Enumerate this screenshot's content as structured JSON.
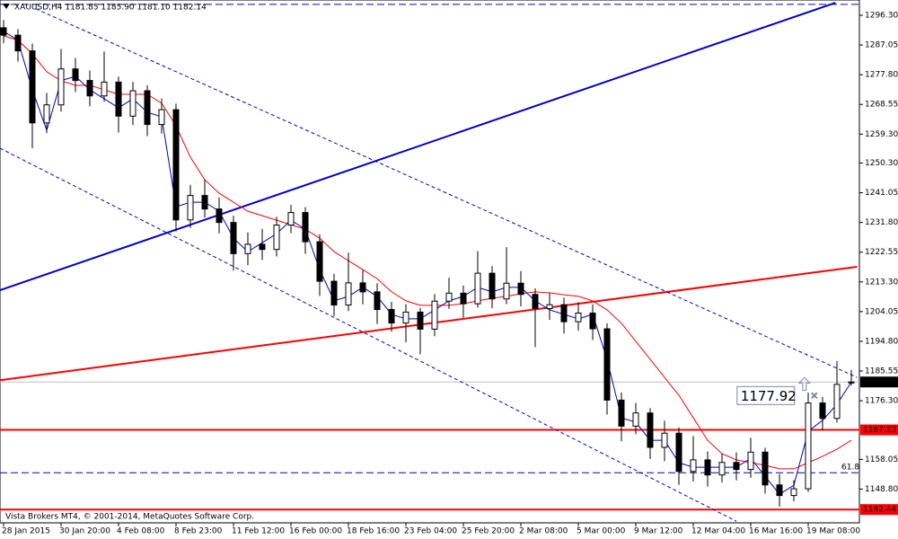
{
  "chart_data": {
    "type": "candlestick",
    "header": "XAUUSD,H4  1181.85 1185.90 1181.10 1182.14",
    "copyright": "Vista Brokers MT4, © 2001-2014, MetaQuotes Software Corp.",
    "categories": [
      "28 Jan 2015",
      null,
      null,
      null,
      "30 Jan 20:00",
      null,
      null,
      null,
      "4 Feb 08:00",
      null,
      null,
      null,
      "8 Feb 23:00",
      null,
      null,
      null,
      "11 Feb 12:00",
      null,
      null,
      null,
      "16 Feb 00:00",
      null,
      null,
      null,
      "18 Feb 16:00",
      null,
      null,
      null,
      "23 Feb 04:00",
      null,
      null,
      null,
      "25 Feb 20:00",
      null,
      null,
      null,
      "2 Mar 08:00",
      null,
      null,
      null,
      "5 Mar 00:00",
      null,
      null,
      null,
      "9 Mar 12:00",
      null,
      null,
      null,
      "12 Mar 04:00",
      null,
      null,
      null,
      "16 Mar 16:00",
      null,
      null,
      null,
      "19 Mar 08:00",
      null,
      null,
      null
    ],
    "open": [
      1292.4,
      1290.1,
      1285.2,
      1262.8,
      1268.4,
      1279.6,
      1276.0,
      1271.2,
      1275.5,
      1264.9,
      1272.8,
      1262.3,
      1266.9,
      1232.6,
      1240.2,
      1236.0,
      1231.8,
      1222.1,
      1225.0,
      1223.4,
      1231.0,
      1234.9,
      1225.8,
      1213.5,
      1206.1,
      1213.0,
      1210.2,
      1204.7,
      1200.5,
      1203.9,
      1198.6,
      1207.3,
      1209.8,
      1206.5,
      1216.0,
      1208.0,
      1212.9,
      1209.4,
      1205.0,
      1206.2,
      1200.9,
      1203.6,
      1198.7,
      1176.5,
      1168.4,
      1172.5,
      1161.8,
      1166.2,
      1154.3,
      1157.9,
      1153.2,
      1157.1,
      1154.9,
      1160.3,
      1150.1,
      1146.8,
      1148.9,
      1175.6,
      1170.8,
      1181.85
    ],
    "high": [
      1294.8,
      1292.0,
      1287.5,
      1272.1,
      1285.8,
      1283.0,
      1279.1,
      1285.0,
      1277.2,
      1275.6,
      1274.5,
      1270.4,
      1268.8,
      1243.5,
      1245.2,
      1239.6,
      1233.9,
      1228.7,
      1229.8,
      1233.6,
      1237.3,
      1236.6,
      1228.1,
      1215.8,
      1222.4,
      1217.0,
      1212.9,
      1207.1,
      1206.4,
      1205.2,
      1209.5,
      1214.6,
      1212.2,
      1222.9,
      1218.2,
      1224.1,
      1216.7,
      1211.3,
      1209.8,
      1208.4,
      1207.0,
      1206.3,
      1200.4,
      1178.9,
      1175.6,
      1174.0,
      1170.1,
      1168.0,
      1165.3,
      1160.5,
      1159.8,
      1160.2,
      1164.8,
      1161.7,
      1153.5,
      1151.6,
      1178.8,
      1177.5,
      1188.6,
      1185.9
    ],
    "low": [
      1287.6,
      1281.9,
      1254.9,
      1259.6,
      1266.3,
      1272.4,
      1268.0,
      1269.4,
      1259.8,
      1262.1,
      1258.7,
      1259.5,
      1229.0,
      1230.1,
      1233.3,
      1228.4,
      1216.8,
      1218.5,
      1220.1,
      1221.2,
      1228.5,
      1222.0,
      1208.9,
      1202.7,
      1204.2,
      1206.3,
      1200.2,
      1197.8,
      1194.5,
      1190.8,
      1196.4,
      1204.9,
      1202.1,
      1205.3,
      1205.1,
      1206.4,
      1205.7,
      1193.0,
      1201.5,
      1197.2,
      1198.1,
      1195.2,
      1172.0,
      1163.7,
      1165.9,
      1158.2,
      1157.5,
      1150.1,
      1151.2,
      1149.6,
      1150.9,
      1151.5,
      1152.3,
      1147.4,
      1143.3,
      1145.0,
      1147.9,
      1167.1,
      1169.5,
      1181.1
    ],
    "close": [
      1290.1,
      1285.2,
      1262.8,
      1268.4,
      1279.6,
      1276.0,
      1271.2,
      1275.5,
      1264.9,
      1272.8,
      1262.3,
      1266.9,
      1232.6,
      1240.2,
      1236.0,
      1231.8,
      1222.1,
      1225.0,
      1223.4,
      1231.0,
      1234.9,
      1225.8,
      1213.5,
      1206.1,
      1213.0,
      1210.2,
      1204.7,
      1200.5,
      1203.9,
      1198.6,
      1207.3,
      1209.8,
      1206.5,
      1216.0,
      1208.0,
      1212.9,
      1209.4,
      1205.0,
      1206.2,
      1200.9,
      1203.6,
      1198.7,
      1176.5,
      1168.4,
      1172.5,
      1161.8,
      1166.2,
      1154.3,
      1157.9,
      1153.2,
      1157.1,
      1154.9,
      1160.3,
      1150.1,
      1146.8,
      1148.9,
      1175.6,
      1170.8,
      1181.4,
      1182.14
    ],
    "series": [
      {
        "color": "#ff0000",
        "values": [
          1289.9,
          1288.5,
          1284.3,
          1278.7,
          1275.9,
          1274.5,
          1274.5,
          1273.1,
          1271.7,
          1271.7,
          1271.7,
          1268.9,
          1261.9,
          1252.1,
          1245.1,
          1240.9,
          1238.1,
          1235.3,
          1233.9,
          1232.5,
          1231.1,
          1229.7,
          1226.9,
          1222.7,
          1219.9,
          1217.1,
          1214.3,
          1210.2,
          1207.4,
          1206.0,
          1206.0,
          1206.0,
          1206.5,
          1207.4,
          1208.2,
          1208.8,
          1209.6,
          1210.2,
          1209.9,
          1209.3,
          1208.8,
          1207.4,
          1204.6,
          1200.4,
          1194.8,
          1189.2,
          1183.6,
          1178.0,
          1171.0,
          1164.0,
          1159.8,
          1157.9,
          1157.0,
          1156.2,
          1155.1,
          1155.1,
          1157.0,
          1159.0,
          1161.2,
          1164.0
        ]
      },
      {
        "color": "#0000cc",
        "values": [
          1291.3,
          1288.5,
          1273.1,
          1260.5,
          1275.9,
          1277.3,
          1273.1,
          1270.3,
          1267.5,
          1270.3,
          1266.1,
          1264.7,
          1236.7,
          1238.1,
          1238.1,
          1235.3,
          1226.9,
          1222.7,
          1225.5,
          1228.3,
          1232.5,
          1229.7,
          1217.1,
          1207.4,
          1208.8,
          1211.6,
          1208.8,
          1203.2,
          1201.8,
          1201.8,
          1204.6,
          1207.4,
          1208.8,
          1211.6,
          1210.2,
          1211.6,
          1211.6,
          1207.4,
          1204.6,
          1203.2,
          1201.8,
          1203.2,
          1189.2,
          1171.0,
          1169.6,
          1164.0,
          1164.0,
          1157.0,
          1155.6,
          1155.6,
          1155.6,
          1155.6,
          1158.4,
          1152.8,
          1147.2,
          1150.0,
          1166.8,
          1170.2,
          1175.2,
          1182.1
        ]
      }
    ],
    "ylim": [
      1138.3,
      1301.05
    ],
    "yticks": [
      {
        "value": 1296.3,
        "label": "1296.30"
      },
      {
        "value": 1287.05,
        "label": "1287.05"
      },
      {
        "value": 1277.8,
        "label": "1277.80"
      },
      {
        "value": 1268.55,
        "label": "1268.55"
      },
      {
        "value": 1259.3,
        "label": "1259.30"
      },
      {
        "value": 1250.3,
        "label": "1250.30"
      },
      {
        "value": 1241.05,
        "label": "1241.05"
      },
      {
        "value": 1231.8,
        "label": "1231.80"
      },
      {
        "value": 1222.55,
        "label": "1222.55"
      },
      {
        "value": 1213.3,
        "label": "1213.30"
      },
      {
        "value": 1204.05,
        "label": "1204.05"
      },
      {
        "value": 1194.8,
        "label": "1194.80"
      },
      {
        "value": 1185.55,
        "label": "1185.55"
      },
      {
        "value": 1176.3,
        "label": "1176.30"
      },
      {
        "value": 1158.05,
        "label": "1158.05"
      },
      {
        "value": 1148.8,
        "label": "1148.80"
      }
    ],
    "levels": [
      {
        "value": 1299.7,
        "color": "#0000cc",
        "style": "dashed"
      },
      {
        "value": 1182.14,
        "color": "#c0c0c0",
        "style": "solid",
        "tag_color": "#000000"
      },
      {
        "value": 1167.23,
        "color": "#ff0000",
        "style": "solid",
        "tag_color": "#ff0000"
      },
      {
        "value": 1153.9,
        "color": "#0000cc",
        "style": "dashed",
        "label": "61.8"
      },
      {
        "value": 1142.44,
        "color": "#ff0000",
        "style": "solid",
        "tag_color": "#ff0000"
      }
    ],
    "trendlines": [
      {
        "start": [
          -0.25,
          1210.7
        ],
        "end": [
          57.9,
          1300.2
        ],
        "color": "#0000cc",
        "style": "solid"
      },
      {
        "start": [
          -0.25,
          1182.7
        ],
        "end": [
          59.4,
          1218.0
        ],
        "color": "#ff0000",
        "style": "solid"
      },
      {
        "start": [
          2.25,
          1298.3
        ],
        "end": [
          59.4,
          1183.6
        ],
        "color": "#0000cc",
        "style": "dashed"
      },
      {
        "start": [
          -0.25,
          1254.9
        ],
        "end": [
          51,
          1138.8
        ],
        "color": "#0000cc",
        "style": "dashed"
      }
    ],
    "annotation": {
      "value": 1177.92,
      "at": 53.3,
      "color": "#8080c0"
    }
  }
}
